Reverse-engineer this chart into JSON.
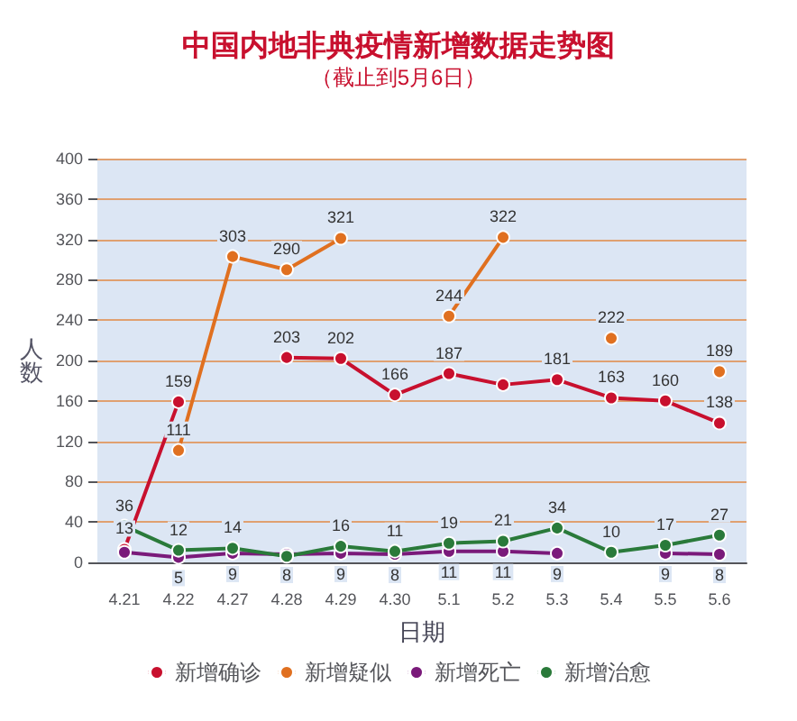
{
  "chart_data": {
    "type": "line",
    "title": "中国内地非典疫情新增数据走势图",
    "subtitle": "（截止到5月6日）",
    "xlabel": "日期",
    "ylabel": "人数",
    "categories": [
      "4.21",
      "4.22",
      "4.27",
      "4.28",
      "4.29",
      "4.30",
      "5.1",
      "5.2",
      "5.3",
      "5.4",
      "5.5",
      "5.6"
    ],
    "series": [
      {
        "name": "新增确诊",
        "color": "#c8102e",
        "values": [
          13,
          159,
          null,
          203,
          202,
          166,
          187,
          176,
          181,
          163,
          160,
          138
        ],
        "value_labels": [
          "13",
          "159",
          null,
          "203",
          "202",
          "166",
          "187",
          null,
          "181",
          "163",
          "160",
          "138"
        ]
      },
      {
        "name": "新增疑似",
        "color": "#e07020",
        "values": [
          null,
          111,
          303,
          290,
          321,
          null,
          244,
          322,
          null,
          222,
          null,
          189
        ],
        "value_labels": [
          null,
          "111",
          "303",
          "290",
          "321",
          null,
          "244",
          "322",
          null,
          "222",
          null,
          "189"
        ]
      },
      {
        "name": "新增死亡",
        "color": "#7a1a7a",
        "values": [
          10,
          5,
          9,
          8,
          9,
          8,
          11,
          11,
          9,
          null,
          9,
          8
        ],
        "value_labels": [
          null,
          "5",
          "9",
          "8",
          "9",
          "8",
          "11",
          "11",
          "9",
          null,
          "9",
          "8"
        ]
      },
      {
        "name": "新增治愈",
        "color": "#2a7a3a",
        "values": [
          36,
          12,
          14,
          6,
          16,
          11,
          19,
          21,
          34,
          10,
          17,
          27
        ],
        "value_labels": [
          "36",
          "12",
          "14",
          null,
          "16",
          "11",
          "19",
          "21",
          "34",
          "10",
          "17",
          "27"
        ]
      }
    ],
    "ylim": [
      0,
      400
    ],
    "yticks": [
      0,
      40,
      80,
      120,
      160,
      200,
      240,
      280,
      320,
      360,
      400
    ],
    "grid": "y",
    "legend": "bottom",
    "marker": "circle",
    "line_style": "solid"
  }
}
